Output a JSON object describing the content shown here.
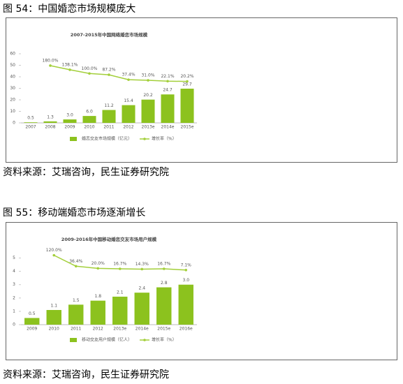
{
  "captions": [
    "图 54：中国婚恋市场规模庞大",
    "图 55：移动端婚恋市场逐渐增长"
  ],
  "sources": [
    "资料来源：艾瑞咨询，民生证券研究院",
    "资料来源：艾瑞咨询，民生证券研究院"
  ],
  "chart_data": [
    {
      "type": "bar",
      "title": "2007-2015年中国网络婚恋市场规模",
      "categories": [
        "2007",
        "2008",
        "2009",
        "2010",
        "2011",
        "2012",
        "2013e",
        "2014e",
        "2015e"
      ],
      "series": [
        {
          "name": "婚恋交友市场规模（亿元）",
          "color": "#8cc21e",
          "values": [
            0.5,
            1.3,
            3.0,
            6.0,
            11.2,
            15.4,
            20.2,
            24.7,
            29.7
          ],
          "value_labels": [
            "0.5",
            "1.3",
            "3.0",
            "6.0",
            "11.2",
            "15.4",
            "20.2",
            "24.7",
            "29.7"
          ]
        },
        {
          "name": "增长率（%）",
          "color": "#a3cf3a",
          "axis": "y2",
          "values": [
            null,
            180.0,
            138.1,
            100.0,
            87.2,
            37.4,
            31.0,
            22.1,
            20.2
          ],
          "value_labels": [
            null,
            "180.0%",
            "138.1%",
            "100.0%",
            "87.2%",
            "37.4%",
            "31.0%",
            "22.1%",
            "20.2%"
          ]
        }
      ],
      "ylim": [
        0,
        60
      ],
      "yticks": [
        0,
        10,
        20,
        30,
        40,
        50,
        60
      ],
      "y2lim": [
        -400,
        300
      ]
    },
    {
      "type": "bar",
      "title": "2009-2016年中国移动婚恋交友市场用户规模",
      "categories": [
        "2009",
        "2010",
        "2011",
        "2012",
        "2013e",
        "2014e",
        "2015e",
        "2016e"
      ],
      "series": [
        {
          "name": "移动交友用户规模（亿人）",
          "color": "#8cc21e",
          "values": [
            0.5,
            1.1,
            1.5,
            1.8,
            2.1,
            2.4,
            2.8,
            3.0
          ],
          "value_labels": [
            "0.5",
            "1.1",
            "1.5",
            "1.8",
            "2.1",
            "2.4",
            "2.8",
            "3.0"
          ]
        },
        {
          "name": "增长率（%）",
          "color": "#a3cf3a",
          "axis": "y2",
          "values": [
            null,
            120.0,
            36.4,
            20.0,
            16.7,
            14.3,
            16.7,
            7.1
          ],
          "value_labels": [
            null,
            "120.0%",
            "36.4%",
            "20.0%",
            "16.7%",
            "14.3%",
            "16.7%",
            "7.1%"
          ]
        }
      ],
      "ylim": [
        0,
        5.5
      ],
      "yticks": [
        0,
        1,
        2,
        3,
        4,
        5
      ],
      "y2lim": [
        -410,
        150
      ]
    }
  ]
}
